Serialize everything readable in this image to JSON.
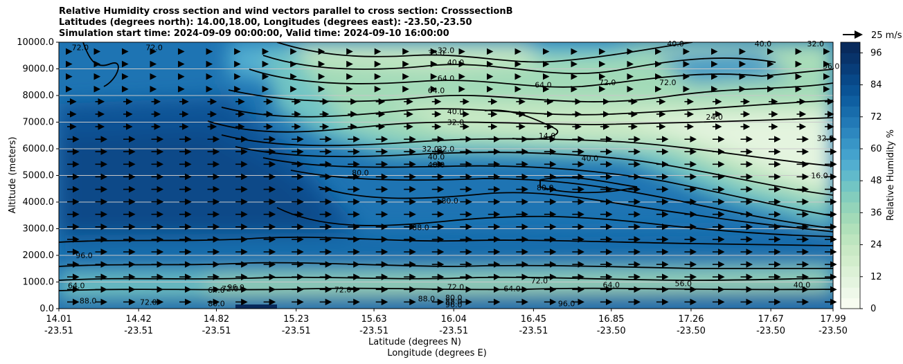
{
  "title_lines": [
    "Relative Humidity cross section and wind vectors parallel to cross section: CrosssectionB",
    "Latitudes (degrees north): 14.00,18.00, Longitudes (degrees east): -23.50,-23.50",
    "Simulation start time: 2024-09-09 00:00:00, Valid time: 2024-09-10 16:00:00"
  ],
  "ylabel": "Altitude (meters)",
  "xlabel_lat": "Latitude (degrees N)",
  "xlabel_lon": "Longitude (degrees E)",
  "colorbar_label": "Relative Humidity %",
  "quiver_key": "25 m/s",
  "chart_data": {
    "type": "heatmap",
    "subtype": "filled contour cross-section with wind vectors",
    "ylim": [
      0,
      10000
    ],
    "y_ticks": [
      "0.0",
      "1000.0",
      "2000.0",
      "3000.0",
      "4000.0",
      "5000.0",
      "6000.0",
      "7000.0",
      "8000.0",
      "9000.0",
      "10000.0"
    ],
    "x_ticks": [
      {
        "lat": "14.01",
        "lon": "-23.51"
      },
      {
        "lat": "14.42",
        "lon": "-23.51"
      },
      {
        "lat": "14.82",
        "lon": "-23.51"
      },
      {
        "lat": "15.23",
        "lon": "-23.51"
      },
      {
        "lat": "15.63",
        "lon": "-23.51"
      },
      {
        "lat": "16.04",
        "lon": "-23.51"
      },
      {
        "lat": "16.45",
        "lon": "-23.51"
      },
      {
        "lat": "16.85",
        "lon": "-23.50"
      },
      {
        "lat": "17.26",
        "lon": "-23.50"
      },
      {
        "lat": "17.67",
        "lon": "-23.50"
      },
      {
        "lat": "17.99",
        "lon": "-23.50"
      }
    ],
    "colorbar": {
      "min": 0,
      "max": 100,
      "ticks": [
        "0",
        "12",
        "24",
        "36",
        "48",
        "60",
        "72",
        "84",
        "96"
      ],
      "step": 4
    },
    "contour_labels": [
      {
        "t": "72.0",
        "lat": 14.12,
        "z": 9800
      },
      {
        "t": "72.0",
        "lat": 14.5,
        "z": 9800
      },
      {
        "t": "32.0",
        "lat": 16.0,
        "z": 9700
      },
      {
        "t": "33.0",
        "lat": 15.95,
        "z": 9600
      },
      {
        "t": "40.0",
        "lat": 16.05,
        "z": 9250
      },
      {
        "t": "40.0",
        "lat": 17.18,
        "z": 9950
      },
      {
        "t": "32.0",
        "lat": 17.9,
        "z": 9950
      },
      {
        "t": "40.0",
        "lat": 17.63,
        "z": 9950
      },
      {
        "t": "56.0",
        "lat": 17.98,
        "z": 9100
      },
      {
        "t": "64.0",
        "lat": 15.95,
        "z": 8200
      },
      {
        "t": "64.0",
        "lat": 16.0,
        "z": 8650
      },
      {
        "t": "64.0",
        "lat": 16.5,
        "z": 8400
      },
      {
        "t": "72.0",
        "lat": 16.83,
        "z": 8500
      },
      {
        "t": "72.0",
        "lat": 17.14,
        "z": 8500
      },
      {
        "t": "40.0",
        "lat": 16.05,
        "z": 7400
      },
      {
        "t": "32.0",
        "lat": 16.05,
        "z": 7000
      },
      {
        "t": "24.0",
        "lat": 17.38,
        "z": 7200
      },
      {
        "t": "14.0",
        "lat": 16.52,
        "z": 6500
      },
      {
        "t": "32.0",
        "lat": 17.95,
        "z": 6400
      },
      {
        "t": "32.0",
        "lat": 15.92,
        "z": 6000
      },
      {
        "t": "32.0",
        "lat": 16.0,
        "z": 6000
      },
      {
        "t": "40.0",
        "lat": 15.95,
        "z": 5700
      },
      {
        "t": "48.0",
        "lat": 15.95,
        "z": 5400
      },
      {
        "t": "40.0",
        "lat": 16.74,
        "z": 5650
      },
      {
        "t": "16.0",
        "lat": 17.92,
        "z": 5000
      },
      {
        "t": "80.0",
        "lat": 15.56,
        "z": 5100
      },
      {
        "t": "80.0",
        "lat": 16.51,
        "z": 4550
      },
      {
        "t": "80.0",
        "lat": 16.02,
        "z": 4050
      },
      {
        "t": "88.0",
        "lat": 15.87,
        "z": 3050
      },
      {
        "t": "96.0",
        "lat": 14.14,
        "z": 2000
      },
      {
        "t": "64.0",
        "lat": 14.1,
        "z": 870
      },
      {
        "t": "88.0",
        "lat": 14.16,
        "z": 300
      },
      {
        "t": "72.0",
        "lat": 14.47,
        "z": 250
      },
      {
        "t": "96.0",
        "lat": 14.92,
        "z": 800
      },
      {
        "t": "72.0",
        "lat": 14.89,
        "z": 750
      },
      {
        "t": "64.0",
        "lat": 14.82,
        "z": 700
      },
      {
        "t": "80.0",
        "lat": 14.82,
        "z": 200
      },
      {
        "t": "72.0",
        "lat": 15.47,
        "z": 720
      },
      {
        "t": "72.0",
        "lat": 16.05,
        "z": 820
      },
      {
        "t": "88.0",
        "lat": 15.9,
        "z": 380
      },
      {
        "t": "80.0",
        "lat": 16.04,
        "z": 420
      },
      {
        "t": "88.0",
        "lat": 16.04,
        "z": 270
      },
      {
        "t": "96.0",
        "lat": 16.04,
        "z": 150
      },
      {
        "t": "64.0",
        "lat": 16.34,
        "z": 750
      },
      {
        "t": "72.0",
        "lat": 16.48,
        "z": 1050
      },
      {
        "t": "96.0",
        "lat": 16.62,
        "z": 200
      },
      {
        "t": "64.0",
        "lat": 16.85,
        "z": 900
      },
      {
        "t": "56.0",
        "lat": 17.22,
        "z": 950
      },
      {
        "t": "40.0",
        "lat": 17.83,
        "z": 900
      }
    ]
  },
  "colors": {
    "rh_scale": [
      "#f7fcf0",
      "#eef8e9",
      "#e4f4df",
      "#dcf1d6",
      "#d2edcc",
      "#c9e9c5",
      "#bde5bf",
      "#b0e0ba",
      "#a2dab8",
      "#93d4ba",
      "#83cdbd",
      "#72c5c4",
      "#61bacb",
      "#52aed0",
      "#44a2cd",
      "#3895c6",
      "#2d87bf",
      "#2279b6",
      "#186cab",
      "#0f5fa1",
      "#0a5395",
      "#084888",
      "#083d79",
      "#08336a",
      "#082a5c"
    ],
    "contour_line": "#000000",
    "grid": "#c8c8c8"
  }
}
